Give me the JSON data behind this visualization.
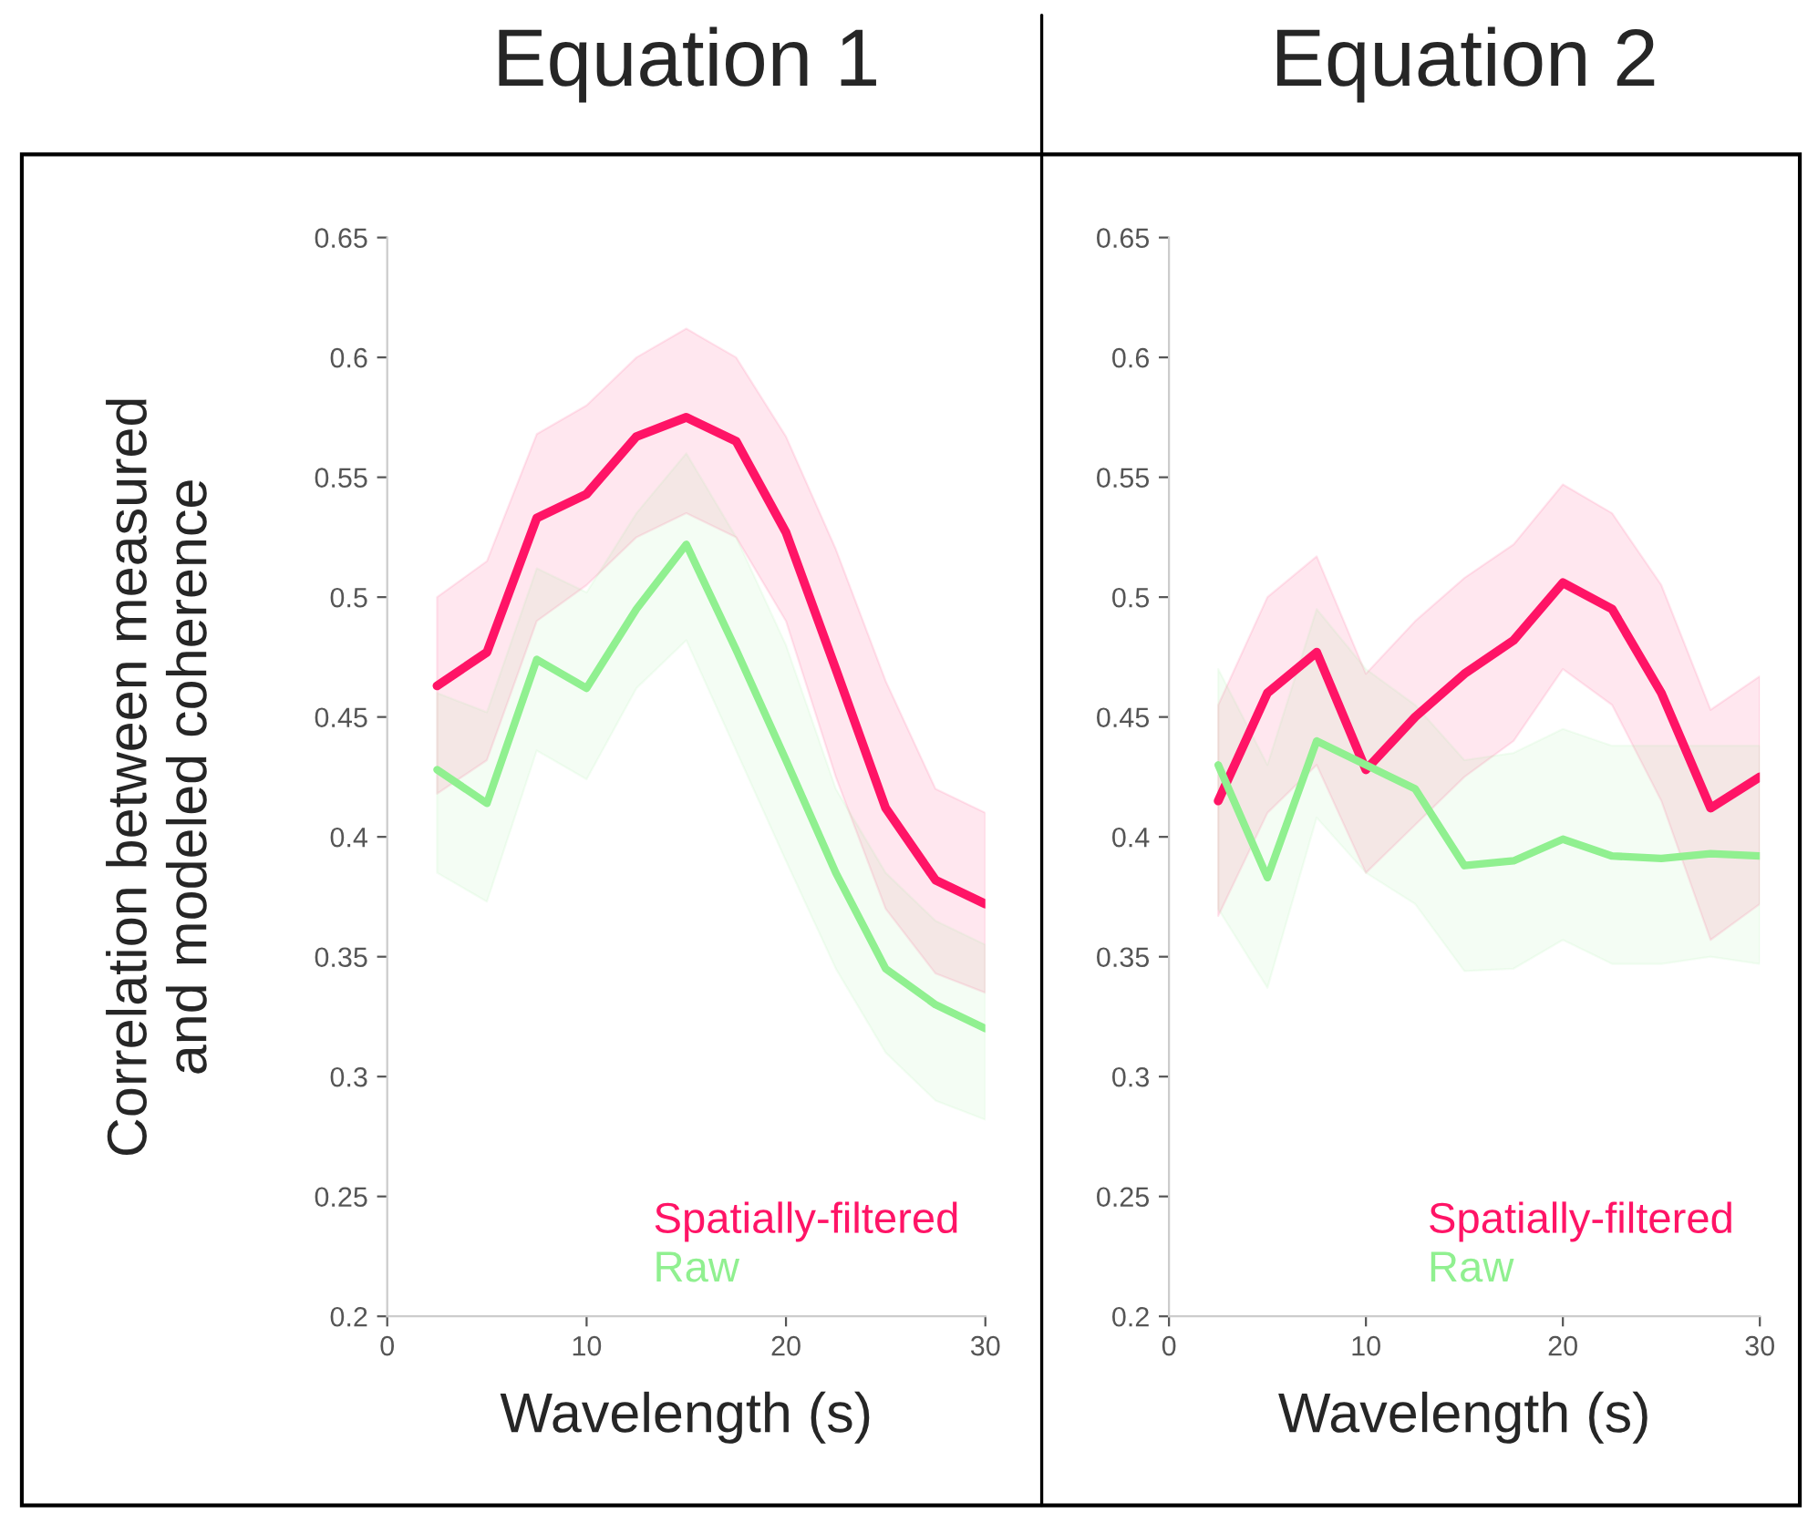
{
  "chart_data": [
    {
      "type": "line",
      "title": "Equation 1",
      "xlabel": "Wavelength (s)",
      "ylabel": "Correlation between measured\nand modeled coherence",
      "x": [
        2.5,
        5,
        7.5,
        10,
        12.5,
        15,
        17.5,
        20,
        22.5,
        25,
        27.5,
        30
      ],
      "series": [
        {
          "name": "Spatially-filtered",
          "color": "#ff1466",
          "values": [
            0.463,
            0.477,
            0.533,
            0.543,
            0.567,
            0.575,
            0.565,
            0.527,
            0.47,
            0.412,
            0.382,
            0.372
          ],
          "upper": [
            0.5,
            0.515,
            0.568,
            0.58,
            0.6,
            0.612,
            0.6,
            0.567,
            0.52,
            0.465,
            0.42,
            0.41
          ],
          "lower": [
            0.418,
            0.432,
            0.49,
            0.505,
            0.525,
            0.535,
            0.525,
            0.49,
            0.425,
            0.37,
            0.343,
            0.335
          ]
        },
        {
          "name": "Raw",
          "color": "#90f090",
          "values": [
            0.428,
            0.414,
            0.474,
            0.462,
            0.495,
            0.522,
            0.478,
            0.432,
            0.385,
            0.345,
            0.33,
            0.32
          ],
          "upper": [
            0.46,
            0.452,
            0.512,
            0.502,
            0.535,
            0.56,
            0.525,
            0.48,
            0.42,
            0.385,
            0.365,
            0.355
          ],
          "lower": [
            0.385,
            0.373,
            0.436,
            0.424,
            0.462,
            0.482,
            0.436,
            0.39,
            0.345,
            0.31,
            0.29,
            0.282
          ]
        }
      ],
      "xlim": [
        0,
        30
      ],
      "xticks": [
        0,
        10,
        20,
        30
      ],
      "ylim": [
        0.2,
        0.65
      ],
      "yticks": [
        0.2,
        0.25,
        0.3,
        0.35,
        0.4,
        0.45,
        0.5,
        0.55,
        0.6,
        0.65
      ],
      "grid": false,
      "legend": "bottom right"
    },
    {
      "type": "line",
      "title": "Equation 2",
      "xlabel": "Wavelength (s)",
      "x": [
        2.5,
        5,
        7.5,
        10,
        12.5,
        15,
        17.5,
        20,
        22.5,
        25,
        27.5,
        30
      ],
      "series": [
        {
          "name": "Spatially-filtered",
          "color": "#ff1466",
          "values": [
            0.415,
            0.46,
            0.477,
            0.428,
            0.45,
            0.468,
            0.482,
            0.506,
            0.495,
            0.46,
            0.412,
            0.425
          ],
          "upper": [
            0.455,
            0.5,
            0.517,
            0.468,
            0.49,
            0.508,
            0.522,
            0.547,
            0.535,
            0.505,
            0.453,
            0.467
          ],
          "lower": [
            0.367,
            0.41,
            0.43,
            0.385,
            0.405,
            0.425,
            0.44,
            0.47,
            0.455,
            0.415,
            0.357,
            0.372
          ]
        },
        {
          "name": "Raw",
          "color": "#90f090",
          "values": [
            0.43,
            0.383,
            0.44,
            0.43,
            0.42,
            0.388,
            0.39,
            0.399,
            0.392,
            0.391,
            0.393,
            0.392
          ],
          "upper": [
            0.47,
            0.43,
            0.495,
            0.47,
            0.455,
            0.432,
            0.435,
            0.445,
            0.438,
            0.438,
            0.438,
            0.438
          ],
          "lower": [
            0.37,
            0.337,
            0.408,
            0.385,
            0.372,
            0.344,
            0.345,
            0.357,
            0.347,
            0.347,
            0.35,
            0.347
          ]
        }
      ],
      "xlim": [
        0,
        30
      ],
      "xticks": [
        0,
        10,
        20,
        30
      ],
      "ylim": [
        0.2,
        0.65
      ],
      "yticks": [
        0.2,
        0.25,
        0.3,
        0.35,
        0.4,
        0.45,
        0.5,
        0.55,
        0.6,
        0.65
      ],
      "grid": false,
      "legend": "bottom right"
    }
  ]
}
